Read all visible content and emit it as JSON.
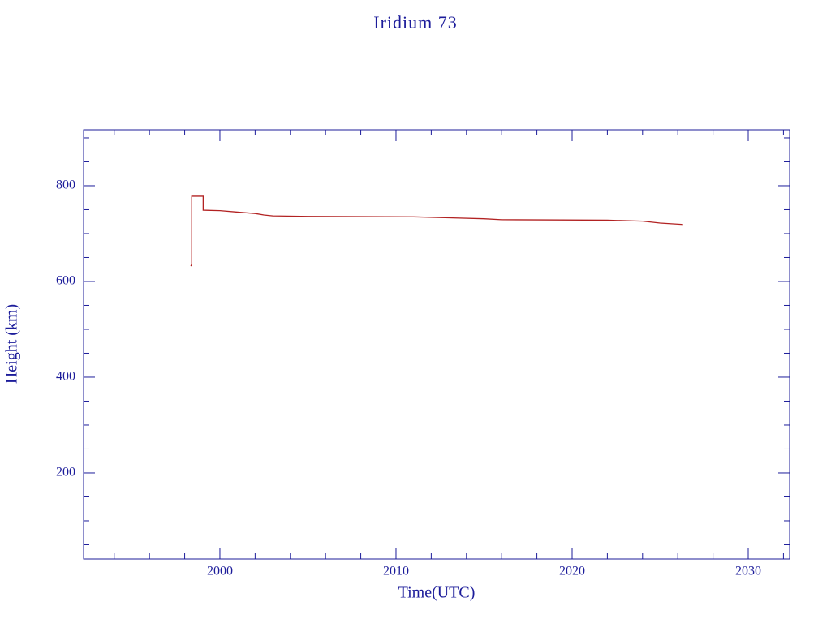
{
  "chart_data": {
    "type": "line",
    "title": "Iridium 73",
    "x_label": "Time(UTC)",
    "y_label": "Height (km)",
    "xlim": [
      1992.26,
      2032.35
    ],
    "ylim": [
      20.3,
      916.9
    ],
    "xticks": [
      2000,
      2010,
      2020,
      2030
    ],
    "yticks": [
      200,
      400,
      600,
      800
    ],
    "xminorticks": [
      1994,
      1996,
      1998,
      2002,
      2004,
      2006,
      2008,
      2012,
      2014,
      2016,
      2018,
      2022,
      2024,
      2026,
      2028,
      2032
    ],
    "yminorticks": [
      50,
      100,
      150,
      250,
      300,
      350,
      450,
      500,
      550,
      650,
      700,
      750,
      850,
      900
    ],
    "series": [
      {
        "color": "#b22222",
        "x": [
          1998.35,
          1998.4,
          1998.4,
          1999.05,
          1999.05,
          2000,
          2001,
          2002,
          2002.5,
          2003,
          2005,
          2011,
          2013,
          2015,
          2016,
          2022,
          2024,
          2025,
          2026.3
        ],
        "values": [
          632,
          636,
          778,
          778,
          749,
          748,
          745,
          742,
          739,
          737,
          736,
          735,
          733,
          731,
          729,
          728,
          726,
          722,
          719
        ]
      }
    ]
  }
}
